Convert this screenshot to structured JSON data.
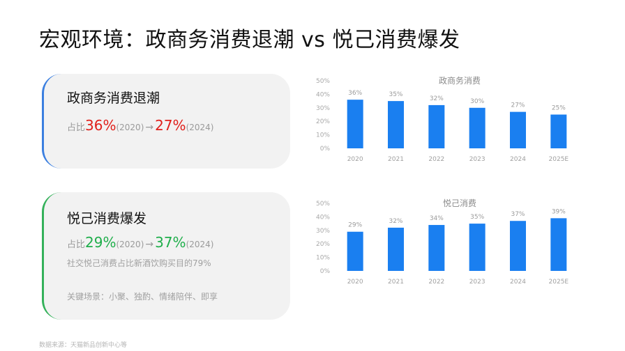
{
  "title": "宏观环境：政商务消费退潮 vs 悦己消费爆发",
  "card_business": {
    "title": "政商务消费退潮",
    "prefix": "占比",
    "from_value": "36%",
    "from_year": "(2020)",
    "arrow": "→",
    "to_value": "27%",
    "to_year": "(2024)"
  },
  "card_self": {
    "title": "悦己消费爆发",
    "prefix": "占比",
    "from_value": "29%",
    "from_year": "(2020)",
    "arrow": "→",
    "to_value": "37%",
    "to_year": "(2024)",
    "note": "社交悦己消费占比新酒饮购买目的79%",
    "scenes": "关键场景：小聚、独酌、情绪陪伴、即享"
  },
  "source": "数据来源：天猫新品创新中心等",
  "colors": {
    "bar": "#1a7ff0",
    "accent_red": "#e0201b",
    "accent_green": "#1fae4b"
  },
  "chart_data": [
    {
      "type": "bar",
      "title": "政商务消费",
      "categories": [
        "2020",
        "2021",
        "2022",
        "2023",
        "2024",
        "2025E"
      ],
      "values": [
        36,
        35,
        32,
        30,
        27,
        25
      ],
      "labels": [
        "36%",
        "35%",
        "32%",
        "30%",
        "27%",
        "25%"
      ],
      "ylim": [
        0,
        50
      ],
      "yticks": [
        "0%",
        "10%",
        "20%",
        "30%",
        "40%",
        "50%"
      ],
      "grid": false,
      "legend": "none"
    },
    {
      "type": "bar",
      "title": "悦己消费",
      "categories": [
        "2020",
        "2021",
        "2022",
        "2023",
        "2024",
        "2025E"
      ],
      "values": [
        29,
        32,
        34,
        35,
        37,
        39
      ],
      "labels": [
        "29%",
        "32%",
        "34%",
        "35%",
        "37%",
        "39%"
      ],
      "ylim": [
        0,
        50
      ],
      "yticks": [
        "0%",
        "10%",
        "20%",
        "30%",
        "40%",
        "50%"
      ],
      "grid": false,
      "legend": "none"
    }
  ]
}
